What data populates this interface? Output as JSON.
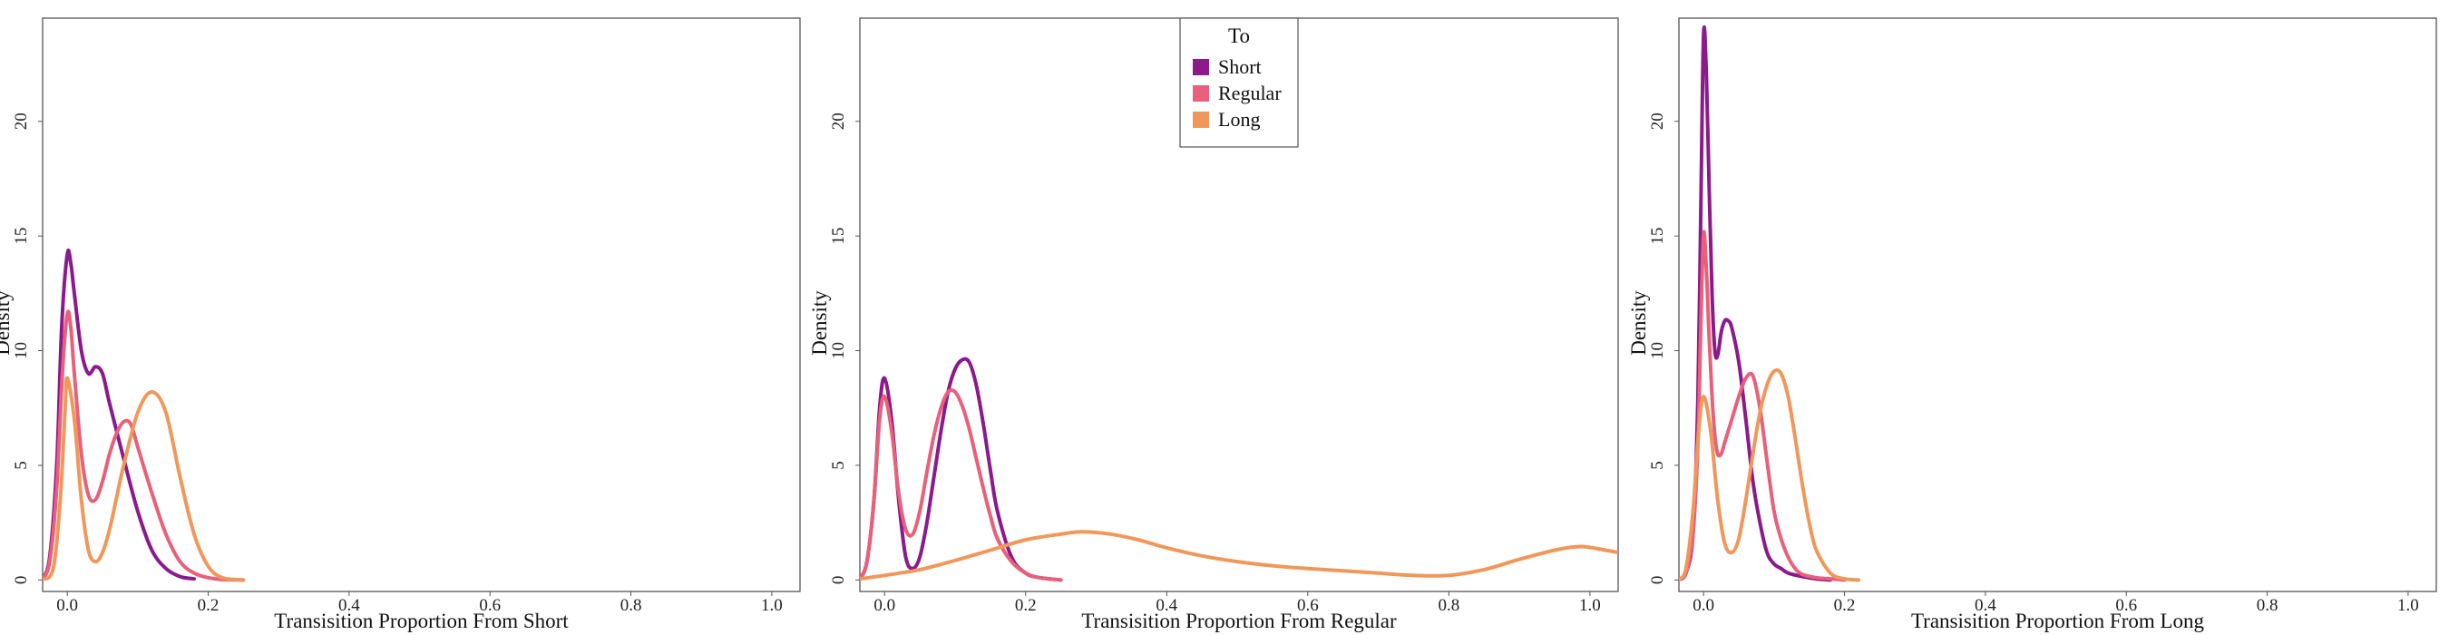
{
  "chart_data": [
    {
      "type": "line",
      "title": "",
      "xlabel": "Transisition Proportion From Short",
      "ylabel": "Density",
      "xlim": [
        -0.035,
        1.04
      ],
      "ylim": [
        -0.5,
        24.5
      ],
      "xticks": [
        0.0,
        0.2,
        0.4,
        0.6,
        0.8,
        1.0
      ],
      "xtick_labels": [
        "0.0",
        "0.2",
        "0.4",
        "0.6",
        "0.8",
        "1.0"
      ],
      "yticks": [
        0,
        5,
        10,
        15,
        20
      ],
      "ytick_labels": [
        "0",
        "5",
        "10",
        "15",
        "20"
      ],
      "grid": false,
      "series": [
        {
          "name": "Short",
          "color": "#8B1A8C",
          "x": [
            -0.035,
            -0.025,
            -0.015,
            -0.008,
            0.0,
            0.005,
            0.01,
            0.02,
            0.03,
            0.04,
            0.05,
            0.06,
            0.08,
            0.1,
            0.12,
            0.14,
            0.16,
            0.18
          ],
          "y": [
            0.05,
            1.0,
            5.0,
            11.0,
            14.2,
            13.8,
            12.5,
            10.0,
            9.0,
            9.3,
            9.0,
            7.7,
            5.3,
            3.0,
            1.3,
            0.5,
            0.15,
            0.05
          ]
        },
        {
          "name": "Regular",
          "color": "#E8607A",
          "x": [
            -0.035,
            -0.025,
            -0.015,
            -0.007,
            0.0,
            0.005,
            0.01,
            0.02,
            0.03,
            0.04,
            0.05,
            0.06,
            0.07,
            0.08,
            0.09,
            0.1,
            0.12,
            0.14,
            0.16,
            0.18,
            0.2,
            0.22,
            0.25
          ],
          "y": [
            0.05,
            0.8,
            4.0,
            9.0,
            11.6,
            11.0,
            9.0,
            5.5,
            3.7,
            3.5,
            4.3,
            5.5,
            6.4,
            6.9,
            6.8,
            5.8,
            3.8,
            2.0,
            0.8,
            0.3,
            0.1,
            0.02,
            0.0
          ]
        },
        {
          "name": "Long",
          "color": "#F0975A",
          "x": [
            -0.035,
            -0.02,
            -0.01,
            -0.003,
            0.0,
            0.01,
            0.02,
            0.03,
            0.04,
            0.05,
            0.06,
            0.07,
            0.08,
            0.1,
            0.12,
            0.14,
            0.16,
            0.18,
            0.2,
            0.22,
            0.25
          ],
          "y": [
            0.02,
            0.5,
            3.5,
            7.5,
            8.8,
            7.0,
            3.5,
            1.3,
            0.8,
            1.2,
            2.2,
            3.6,
            5.0,
            7.3,
            8.2,
            7.3,
            4.5,
            2.0,
            0.6,
            0.1,
            0.0
          ]
        }
      ]
    },
    {
      "type": "line",
      "title": "",
      "xlabel": "Transisition Proportion From Regular",
      "ylabel": "Density",
      "xlim": [
        -0.035,
        1.04
      ],
      "ylim": [
        -0.5,
        24.5
      ],
      "xticks": [
        0.0,
        0.2,
        0.4,
        0.6,
        0.8,
        1.0
      ],
      "xtick_labels": [
        "0.0",
        "0.2",
        "0.4",
        "0.6",
        "0.8",
        "1.0"
      ],
      "yticks": [
        0,
        5,
        10,
        15,
        20
      ],
      "ytick_labels": [
        "0",
        "5",
        "10",
        "15",
        "20"
      ],
      "grid": false,
      "legend": {
        "title": "To",
        "position": "top-center",
        "entries": [
          "Short",
          "Regular",
          "Long"
        ]
      },
      "series": [
        {
          "name": "Short",
          "color": "#8B1A8C",
          "x": [
            -0.035,
            -0.025,
            -0.015,
            -0.007,
            0.0,
            0.01,
            0.02,
            0.03,
            0.04,
            0.05,
            0.06,
            0.07,
            0.08,
            0.09,
            0.1,
            0.11,
            0.12,
            0.13,
            0.14,
            0.15,
            0.16,
            0.18,
            0.2,
            0.22,
            0.25
          ],
          "y": [
            0.05,
            0.8,
            3.5,
            7.5,
            8.8,
            7.0,
            3.5,
            1.0,
            0.5,
            1.0,
            2.5,
            4.5,
            6.5,
            8.2,
            9.2,
            9.6,
            9.5,
            8.5,
            6.8,
            4.8,
            3.0,
            1.0,
            0.3,
            0.1,
            0.0
          ]
        },
        {
          "name": "Regular",
          "color": "#E8607A",
          "x": [
            -0.035,
            -0.025,
            -0.015,
            -0.007,
            0.0,
            0.01,
            0.02,
            0.03,
            0.04,
            0.05,
            0.06,
            0.07,
            0.08,
            0.09,
            0.1,
            0.11,
            0.12,
            0.13,
            0.14,
            0.15,
            0.16,
            0.18,
            0.2,
            0.22,
            0.25
          ],
          "y": [
            0.05,
            0.8,
            3.5,
            7.0,
            8.0,
            6.5,
            3.8,
            2.2,
            2.0,
            3.0,
            4.7,
            6.3,
            7.5,
            8.2,
            8.2,
            7.6,
            6.6,
            5.3,
            4.0,
            2.8,
            1.8,
            0.8,
            0.3,
            0.1,
            0.0
          ]
        },
        {
          "name": "Long",
          "color": "#F0975A",
          "x": [
            -0.035,
            0.0,
            0.05,
            0.1,
            0.15,
            0.2,
            0.25,
            0.28,
            0.32,
            0.36,
            0.4,
            0.45,
            0.5,
            0.55,
            0.6,
            0.65,
            0.7,
            0.75,
            0.8,
            0.85,
            0.9,
            0.95,
            0.98,
            1.0,
            1.04
          ],
          "y": [
            0.05,
            0.2,
            0.45,
            0.85,
            1.3,
            1.75,
            2.0,
            2.1,
            2.0,
            1.75,
            1.4,
            1.05,
            0.8,
            0.62,
            0.5,
            0.4,
            0.3,
            0.2,
            0.2,
            0.45,
            0.9,
            1.3,
            1.45,
            1.42,
            1.2
          ]
        }
      ]
    },
    {
      "type": "line",
      "title": "",
      "xlabel": "Transisition Proportion From Long",
      "ylabel": "Density",
      "xlim": [
        -0.035,
        1.04
      ],
      "ylim": [
        -0.5,
        24.5
      ],
      "xticks": [
        0.0,
        0.2,
        0.4,
        0.6,
        0.8,
        1.0
      ],
      "xtick_labels": [
        "0.0",
        "0.2",
        "0.4",
        "0.6",
        "0.8",
        "1.0"
      ],
      "yticks": [
        0,
        5,
        10,
        15,
        20
      ],
      "ytick_labels": [
        "0",
        "5",
        "10",
        "15",
        "20"
      ],
      "grid": false,
      "series": [
        {
          "name": "Short",
          "color": "#8B1A8C",
          "x": [
            -0.035,
            -0.025,
            -0.015,
            -0.008,
            -0.004,
            0.0,
            0.004,
            0.008,
            0.012,
            0.016,
            0.02,
            0.025,
            0.03,
            0.035,
            0.04,
            0.05,
            0.06,
            0.07,
            0.08,
            0.09,
            0.1,
            0.11,
            0.12,
            0.14,
            0.16,
            0.18
          ],
          "y": [
            0.02,
            0.3,
            2.0,
            8.0,
            16.0,
            23.8,
            22.0,
            17.0,
            12.5,
            10.0,
            9.8,
            10.8,
            11.3,
            11.3,
            11.0,
            9.5,
            7.0,
            4.3,
            2.5,
            1.2,
            0.7,
            0.5,
            0.3,
            0.15,
            0.05,
            0.0
          ]
        },
        {
          "name": "Regular",
          "color": "#E8607A",
          "x": [
            -0.035,
            -0.025,
            -0.015,
            -0.008,
            -0.004,
            0.0,
            0.004,
            0.008,
            0.012,
            0.016,
            0.02,
            0.025,
            0.03,
            0.04,
            0.05,
            0.06,
            0.07,
            0.08,
            0.09,
            0.1,
            0.11,
            0.12,
            0.13,
            0.14,
            0.16,
            0.18,
            0.2
          ],
          "y": [
            0.02,
            0.3,
            2.0,
            6.0,
            11.0,
            15.1,
            13.5,
            10.5,
            8.0,
            6.3,
            5.5,
            5.5,
            6.0,
            7.0,
            8.0,
            8.8,
            8.9,
            7.5,
            5.2,
            3.0,
            1.8,
            1.0,
            0.5,
            0.25,
            0.1,
            0.05,
            0.0
          ]
        },
        {
          "name": "Long",
          "color": "#F0975A",
          "x": [
            -0.035,
            -0.025,
            -0.015,
            -0.007,
            0.0,
            0.01,
            0.02,
            0.03,
            0.04,
            0.05,
            0.06,
            0.07,
            0.08,
            0.09,
            0.1,
            0.11,
            0.12,
            0.13,
            0.14,
            0.15,
            0.16,
            0.18,
            0.2,
            0.22
          ],
          "y": [
            0.02,
            0.5,
            3.0,
            6.5,
            8.0,
            6.5,
            3.5,
            1.6,
            1.2,
            1.8,
            3.5,
            5.5,
            7.3,
            8.5,
            9.1,
            9.0,
            8.0,
            6.2,
            4.2,
            2.5,
            1.3,
            0.3,
            0.05,
            0.0
          ]
        }
      ]
    }
  ]
}
